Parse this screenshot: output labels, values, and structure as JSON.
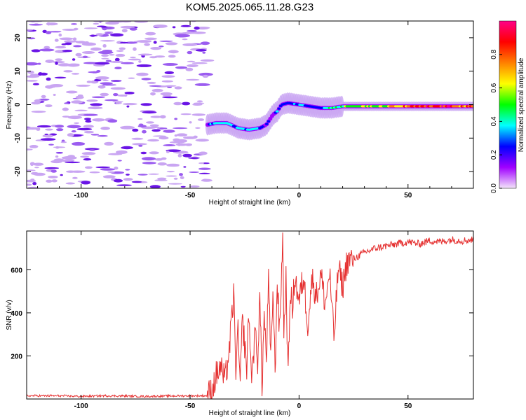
{
  "title": "KOM5.2025.065.11.28.G23",
  "colors": {
    "snr_line": "#e53030",
    "speckle_light": "#c9a5f2",
    "speckle_mid": "#9b5cf0",
    "speckle_dark": "#6a14e6"
  },
  "chart_data": [
    {
      "type": "heatmap",
      "title": "KOM5.2025.065.11.28.G23",
      "xlabel": "Height of straight line (km)",
      "ylabel": "Frequency (Hz)",
      "xlim": [
        -125,
        80
      ],
      "ylim": [
        -25,
        25
      ],
      "x_ticks": [
        -100,
        -50,
        0,
        50
      ],
      "y_ticks": [
        -20,
        -10,
        0,
        10,
        20
      ],
      "x_tick_labels": [
        "-100",
        "-50",
        "0",
        "50"
      ],
      "y_tick_labels": [
        "-20",
        "-10",
        "0",
        "10",
        "20"
      ],
      "noise_region_x": [
        -125,
        -42
      ],
      "signal_track": {
        "x": [
          -42,
          -38,
          -33,
          -28,
          -23,
          -18,
          -15,
          -12,
          -10,
          -8,
          -5,
          0,
          5,
          10,
          15,
          20,
          30,
          40,
          50,
          60,
          70,
          80
        ],
        "freq": [
          -6,
          -5.5,
          -5.5,
          -7,
          -7.5,
          -7,
          -6,
          -3,
          -2,
          0,
          0.5,
          0,
          -0.5,
          -1,
          -1,
          -0.5,
          -0.5,
          -0.5,
          -0.5,
          -0.5,
          -0.5,
          -0.5
        ],
        "amplitude": [
          0.2,
          0.4,
          0.35,
          0.35,
          0.4,
          0.35,
          0.2,
          0.15,
          0.3,
          0.25,
          0.3,
          0.35,
          0.3,
          0.35,
          0.45,
          0.5,
          0.55,
          0.6,
          0.75,
          0.85,
          0.95,
          0.7
        ]
      },
      "colorbar": {
        "label": "Normalized spectral amplitude",
        "range": [
          0,
          1
        ],
        "ticks": [
          0.0,
          0.2,
          0.4,
          0.6,
          0.8
        ],
        "tick_labels": [
          "0.0",
          "0.2",
          "0.4",
          "0.6",
          "0.8"
        ],
        "colors": [
          "#f4e6fa",
          "#a000ff",
          "#0000ff",
          "#00ffff",
          "#00ff00",
          "#ffff00",
          "#ff8000",
          "#ff0000",
          "#ff0088"
        ]
      }
    },
    {
      "type": "line",
      "xlabel": "Height of straight line (km)",
      "ylabel": "SNR (v/v)",
      "xlim": [
        -125,
        80
      ],
      "ylim": [
        0,
        780
      ],
      "x_ticks": [
        -100,
        -50,
        0,
        50
      ],
      "y_ticks": [
        200,
        400,
        600
      ],
      "x_tick_labels": [
        "-100",
        "-50",
        "0",
        "50"
      ],
      "y_tick_labels": [
        "200",
        "400",
        "600"
      ],
      "series": [
        {
          "x": [
            -125,
            -110,
            -100,
            -90,
            -80,
            -70,
            -60,
            -50,
            -42,
            -40,
            -38,
            -36,
            -34,
            -32,
            -30,
            -29,
            -28,
            -27,
            -26,
            -24,
            -23,
            -22,
            -20,
            -19,
            -18,
            -17,
            -16,
            -15,
            -14,
            -13,
            -12,
            -11,
            -10,
            -9,
            -8,
            -7.5,
            -7,
            -6,
            -5,
            -4,
            -3,
            -2,
            0,
            2,
            4,
            6,
            8,
            10,
            12,
            14,
            16,
            18,
            20,
            22,
            25,
            30,
            35,
            40,
            45,
            50,
            55,
            60,
            65,
            70,
            75,
            80
          ],
          "y": [
            15,
            15,
            12,
            15,
            14,
            12,
            14,
            15,
            15,
            40,
            110,
            150,
            80,
            230,
            480,
            150,
            300,
            60,
            370,
            140,
            420,
            100,
            310,
            180,
            470,
            60,
            390,
            180,
            560,
            160,
            520,
            120,
            560,
            300,
            600,
            780,
            300,
            560,
            90,
            520,
            400,
            580,
            450,
            570,
            350,
            560,
            480,
            580,
            440,
            590,
            280,
            610,
            520,
            640,
            650,
            680,
            700,
            710,
            720,
            730,
            720,
            735,
            730,
            740,
            735,
            740
          ]
        }
      ]
    }
  ]
}
